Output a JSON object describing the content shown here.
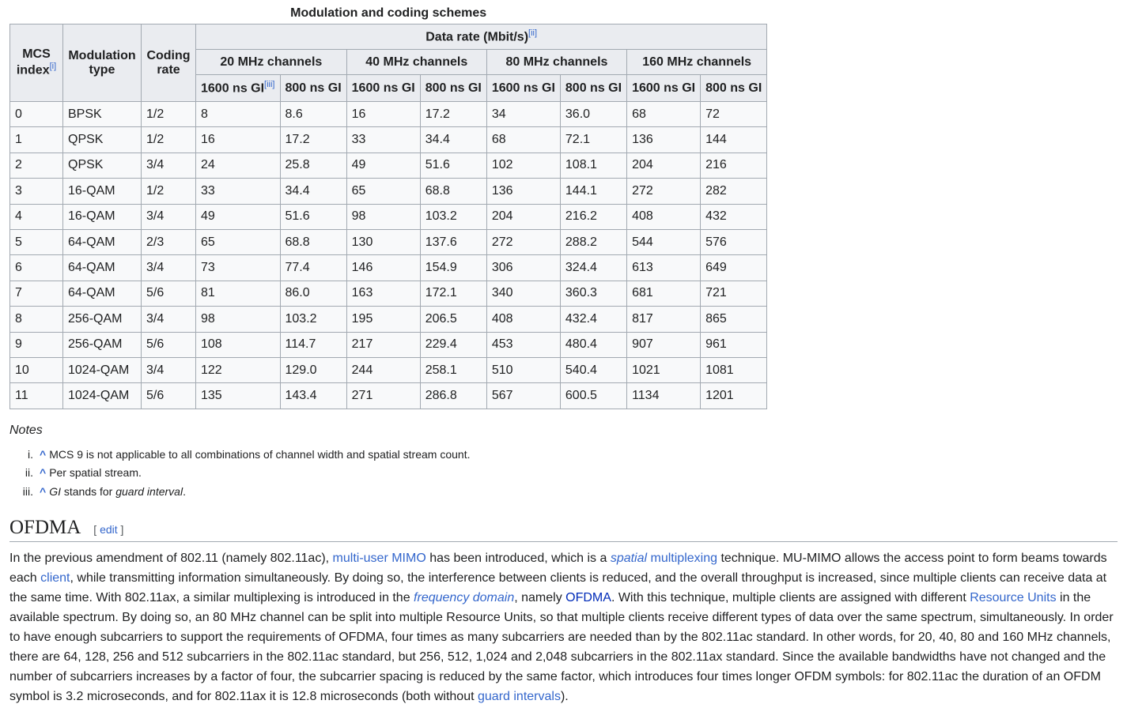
{
  "table": {
    "caption": "Modulation and coding schemes",
    "headers": {
      "mcs_index": "MCS index",
      "mcs_index_note": "[i]",
      "modulation_type": "Modulation type",
      "coding_rate": "Coding rate",
      "data_rate": "Data rate (Mbit/s)",
      "data_rate_note": "[ii]",
      "channels": [
        "20 MHz channels",
        "40 MHz channels",
        "80 MHz channels",
        "160 MHz channels"
      ],
      "gi_1600": "1600 ns GI",
      "gi_1600_note": "[iii]",
      "gi_800": "800 ns GI"
    },
    "rows": [
      [
        "0",
        "BPSK",
        "1/2",
        "8",
        "8.6",
        "16",
        "17.2",
        "34",
        "36.0",
        "68",
        "72"
      ],
      [
        "1",
        "QPSK",
        "1/2",
        "16",
        "17.2",
        "33",
        "34.4",
        "68",
        "72.1",
        "136",
        "144"
      ],
      [
        "2",
        "QPSK",
        "3/4",
        "24",
        "25.8",
        "49",
        "51.6",
        "102",
        "108.1",
        "204",
        "216"
      ],
      [
        "3",
        "16-QAM",
        "1/2",
        "33",
        "34.4",
        "65",
        "68.8",
        "136",
        "144.1",
        "272",
        "282"
      ],
      [
        "4",
        "16-QAM",
        "3/4",
        "49",
        "51.6",
        "98",
        "103.2",
        "204",
        "216.2",
        "408",
        "432"
      ],
      [
        "5",
        "64-QAM",
        "2/3",
        "65",
        "68.8",
        "130",
        "137.6",
        "272",
        "288.2",
        "544",
        "576"
      ],
      [
        "6",
        "64-QAM",
        "3/4",
        "73",
        "77.4",
        "146",
        "154.9",
        "306",
        "324.4",
        "613",
        "649"
      ],
      [
        "7",
        "64-QAM",
        "5/6",
        "81",
        "86.0",
        "163",
        "172.1",
        "340",
        "360.3",
        "681",
        "721"
      ],
      [
        "8",
        "256-QAM",
        "3/4",
        "98",
        "103.2",
        "195",
        "206.5",
        "408",
        "432.4",
        "817",
        "865"
      ],
      [
        "9",
        "256-QAM",
        "5/6",
        "108",
        "114.7",
        "217",
        "229.4",
        "453",
        "480.4",
        "907",
        "961"
      ],
      [
        "10",
        "1024-QAM",
        "3/4",
        "122",
        "129.0",
        "244",
        "258.1",
        "510",
        "540.4",
        "1021",
        "1081"
      ],
      [
        "11",
        "1024-QAM",
        "5/6",
        "135",
        "143.4",
        "271",
        "286.8",
        "567",
        "600.5",
        "1134",
        "1201"
      ]
    ]
  },
  "notes": {
    "title": "Notes",
    "caret": "^",
    "items": [
      {
        "num": "i.",
        "parts": [
          {
            "t": "MCS 9 is not applicable to all combinations of channel width and spatial stream count."
          }
        ]
      },
      {
        "num": "ii.",
        "parts": [
          {
            "t": "Per spatial stream."
          }
        ]
      },
      {
        "num": "iii.",
        "parts": [
          {
            "t": "GI",
            "i": true
          },
          {
            "t": " stands for "
          },
          {
            "t": "guard interval",
            "i": true
          },
          {
            "t": "."
          }
        ]
      }
    ]
  },
  "section": {
    "title": "OFDMA",
    "edit_open": "[ ",
    "edit_label": "edit",
    "edit_close": " ]",
    "paragraph": [
      {
        "t": "In the previous amendment of 802.11 (namely 802.11ac), "
      },
      {
        "t": "multi-user MIMO",
        "link": true
      },
      {
        "t": " has been introduced, which is a "
      },
      {
        "t": "spatial",
        "link": true,
        "i": true
      },
      {
        "t": " multiplexing",
        "link": true
      },
      {
        "t": " technique. MU-MIMO allows the access point to form beams towards each "
      },
      {
        "t": "client",
        "link": true
      },
      {
        "t": ", while transmitting information simultaneously. By doing so, the interference between clients is reduced, and the overall throughput is increased, since multiple clients can receive data at the same time. With 802.11ax, a similar multiplexing is introduced in the "
      },
      {
        "t": "frequency domain",
        "link": true,
        "i": true
      },
      {
        "t": ", namely "
      },
      {
        "t": "OFDMA",
        "link": true,
        "visited": true
      },
      {
        "t": ". With this technique, multiple clients are assigned with different "
      },
      {
        "t": "Resource Units",
        "link": true
      },
      {
        "t": " in the available spectrum. By doing so, an 80 MHz channel can be split into multiple Resource Units, so that multiple clients receive different types of data over the same spectrum, simultaneously. In order to have enough subcarriers to support the requirements of OFDMA, four times as many subcarriers are needed than by the 802.11ac standard. In other words, for 20, 40, 80 and 160 MHz channels, there are 64, 128, 256 and 512 subcarriers in the 802.11ac standard, but 256, 512, 1,024 and 2,048 subcarriers in the 802.11ax standard. Since the available bandwidths have not changed and the number of subcarriers increases by a factor of four, the subcarrier spacing is reduced by the same factor, which introduces four times longer OFDM symbols: for 802.11ac the duration of an OFDM symbol is 3.2 microseconds, and for 802.11ax it is 12.8 microseconds (both without "
      },
      {
        "t": "guard intervals",
        "link": true
      },
      {
        "t": ")."
      }
    ]
  },
  "colors": {
    "link": "#3366cc",
    "link_visited": "#002bb8",
    "header_bg": "#eaecf0",
    "cell_bg": "#f8f9fa",
    "border": "#a2a9b1"
  }
}
